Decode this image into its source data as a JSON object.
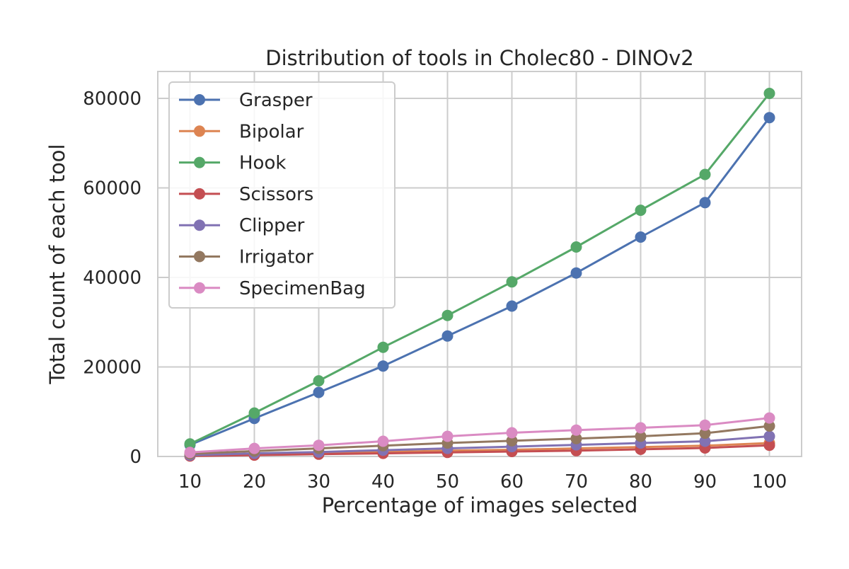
{
  "chart_data": {
    "type": "line",
    "title": "Distribution of tools in Cholec80 - DINOv2",
    "xlabel": "Percentage of images selected",
    "ylabel": "Total count of each tool",
    "x": [
      10,
      20,
      30,
      40,
      50,
      60,
      70,
      80,
      90,
      100
    ],
    "x_tick_labels": [
      "10",
      "20",
      "30",
      "40",
      "50",
      "60",
      "70",
      "80",
      "90",
      "100"
    ],
    "y_ticks": [
      0,
      20000,
      40000,
      60000,
      80000
    ],
    "y_tick_labels": [
      "0",
      "20000",
      "40000",
      "60000",
      "80000"
    ],
    "xlim": [
      5,
      105
    ],
    "ylim": [
      0,
      86000
    ],
    "grid": true,
    "legend_position": "top-left",
    "series": [
      {
        "name": "Grasper",
        "color": "#4c72b0",
        "values": [
          2600,
          8500,
          14300,
          20200,
          26900,
          33600,
          41000,
          49000,
          56700,
          75700
        ]
      },
      {
        "name": "Bipolar",
        "color": "#dd8452",
        "values": [
          200,
          500,
          700,
          1000,
          1300,
          1500,
          1800,
          2100,
          2400,
          3000
        ]
      },
      {
        "name": "Hook",
        "color": "#55a868",
        "values": [
          2800,
          9700,
          16900,
          24400,
          31500,
          39000,
          46800,
          55000,
          63000,
          81100
        ]
      },
      {
        "name": "Scissors",
        "color": "#c44e52",
        "values": [
          100,
          300,
          500,
          700,
          900,
          1100,
          1300,
          1600,
          1900,
          2500
        ]
      },
      {
        "name": "Clipper",
        "color": "#8172b3",
        "values": [
          300,
          700,
          1000,
          1400,
          1800,
          2200,
          2600,
          3000,
          3400,
          4500
        ]
      },
      {
        "name": "Irrigator",
        "color": "#937860",
        "values": [
          600,
          1200,
          1800,
          2400,
          3000,
          3500,
          4000,
          4500,
          5200,
          6800
        ]
      },
      {
        "name": "SpecimenBag",
        "color": "#da8bc3",
        "values": [
          900,
          1800,
          2500,
          3400,
          4500,
          5300,
          5900,
          6400,
          7000,
          8600
        ]
      }
    ]
  }
}
